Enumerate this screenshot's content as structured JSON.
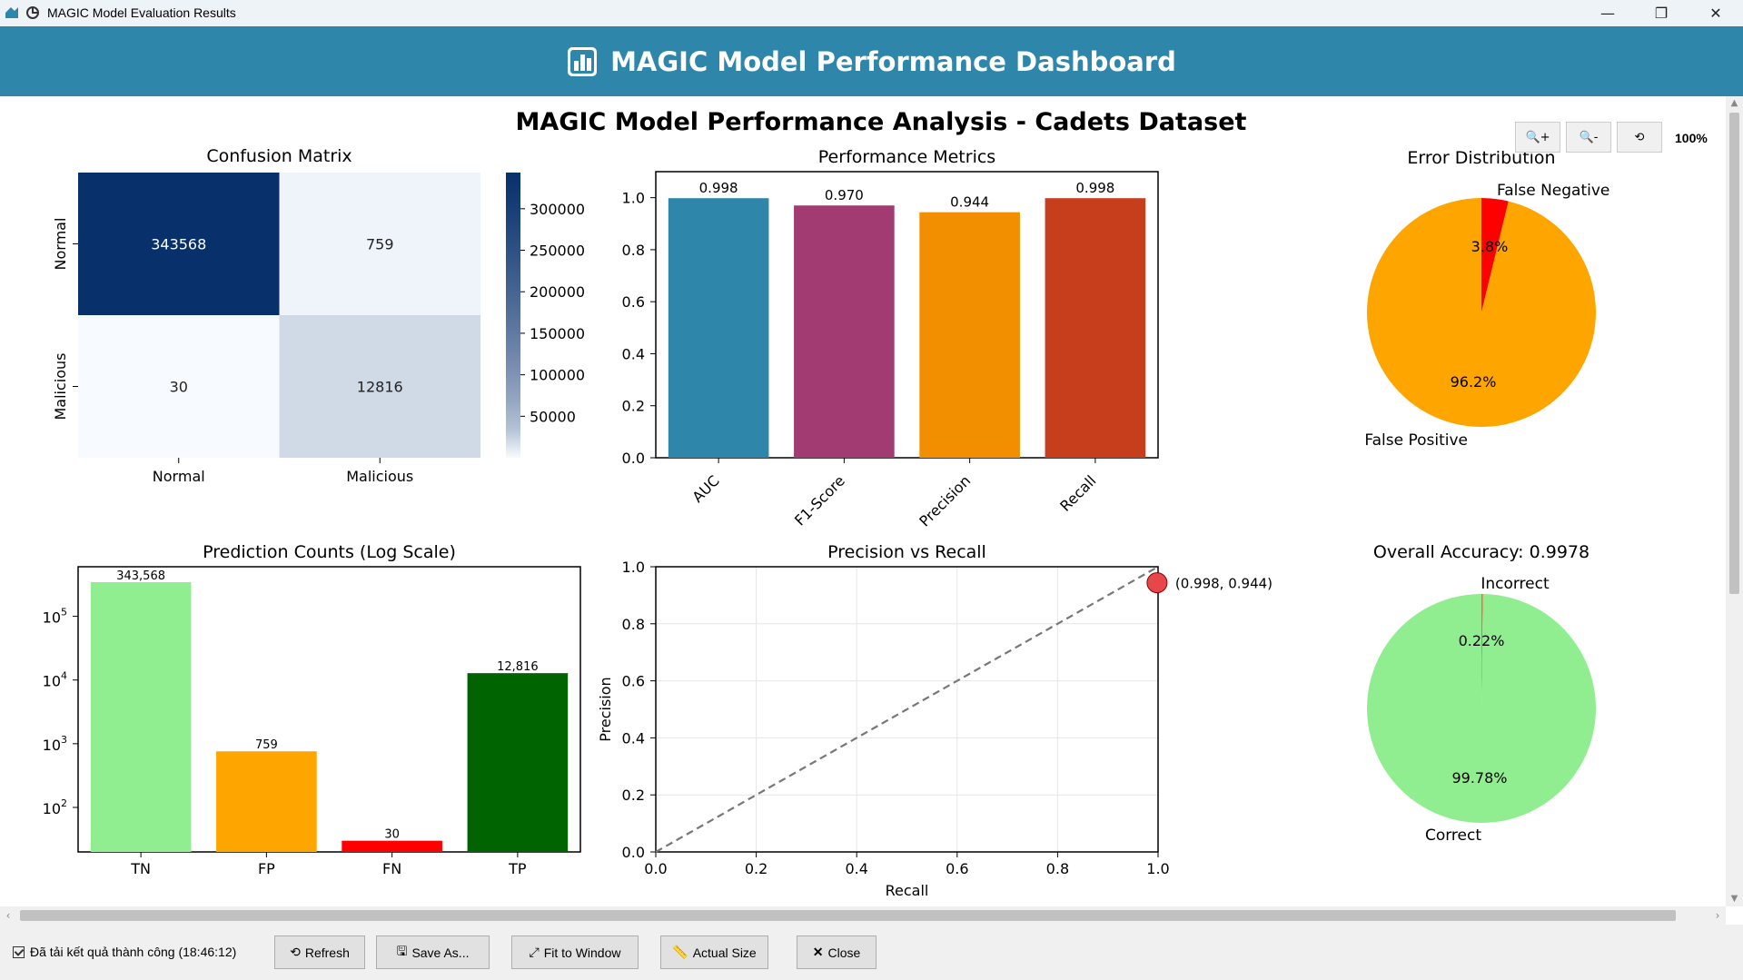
{
  "window": {
    "title": "MAGIC Model Evaluation Results",
    "minimize": "—",
    "maximize": "❐",
    "close": "✕"
  },
  "header": {
    "title": "MAGIC Model Performance Dashboard"
  },
  "figure": {
    "suptitle": "MAGIC Model Performance Analysis - Cadets Dataset"
  },
  "zoom": {
    "level": "100%",
    "zoom_in": "🔍+",
    "zoom_out": "🔍-",
    "reset": "⟲"
  },
  "status": {
    "text": "Đã tải kết quả thành công (18:46:12)"
  },
  "buttons": {
    "refresh": "Refresh",
    "save": "Save As...",
    "fit": "Fit to Window",
    "actual": "Actual Size",
    "close": "Close"
  },
  "chart_data": [
    {
      "type": "heatmap",
      "title": "Confusion Matrix",
      "row_labels": [
        "Normal",
        "Malicious"
      ],
      "col_labels": [
        "Normal",
        "Malicious"
      ],
      "values": [
        [
          343568,
          759
        ],
        [
          30,
          12816
        ]
      ],
      "value_labels": [
        [
          "343568",
          "759"
        ],
        [
          "30",
          "12816"
        ]
      ],
      "colorbar_ticks": [
        "300000",
        "250000",
        "200000",
        "150000",
        "100000",
        "50000"
      ],
      "colorbar_values": [
        300000,
        250000,
        200000,
        150000,
        100000,
        50000
      ],
      "colormap": "Blues"
    },
    {
      "type": "bar",
      "title": "Performance Metrics",
      "categories": [
        "AUC",
        "F1-Score",
        "Precision",
        "Recall"
      ],
      "values": [
        0.998,
        0.97,
        0.944,
        0.998
      ],
      "value_labels": [
        "0.998",
        "0.970",
        "0.944",
        "0.998"
      ],
      "colors": [
        "#2e86ab",
        "#a23b72",
        "#f18f01",
        "#c73e1d"
      ],
      "ylim": [
        0,
        1.1
      ],
      "yticks": [
        "0.0",
        "0.2",
        "0.4",
        "0.6",
        "0.8",
        "1.0"
      ]
    },
    {
      "type": "pie",
      "title": "Error Distribution",
      "labels": [
        "False Negative",
        "False Positive"
      ],
      "values": [
        3.8,
        96.2
      ],
      "pct_labels": [
        "3.8%",
        "96.2%"
      ],
      "colors": [
        "#ff0000",
        "#ffa500"
      ]
    },
    {
      "type": "bar",
      "title": "Prediction Counts (Log Scale)",
      "categories": [
        "TN",
        "FP",
        "FN",
        "TP"
      ],
      "values": [
        343568,
        759,
        30,
        12816
      ],
      "value_labels": [
        "343,568",
        "759",
        "30",
        "12,816"
      ],
      "colors": [
        "#90ee90",
        "#ffa500",
        "#ff0000",
        "#006400"
      ],
      "yscale": "log",
      "yticks": [
        {
          "base": "10",
          "exp": "2",
          "v": 100
        },
        {
          "base": "10",
          "exp": "3",
          "v": 1000
        },
        {
          "base": "10",
          "exp": "4",
          "v": 10000
        },
        {
          "base": "10",
          "exp": "5",
          "v": 100000
        }
      ]
    },
    {
      "type": "scatter",
      "title": "Precision vs Recall",
      "xlabel": "Recall",
      "ylabel": "Precision",
      "xlim": [
        0,
        1
      ],
      "ylim": [
        0,
        1
      ],
      "xticks": [
        "0.0",
        "0.2",
        "0.4",
        "0.6",
        "0.8",
        "1.0"
      ],
      "yticks": [
        "0.0",
        "0.2",
        "0.4",
        "0.6",
        "0.8",
        "1.0"
      ],
      "points": [
        {
          "x": 0.998,
          "y": 0.944,
          "label": "(0.998, 0.944)"
        }
      ],
      "reference_line": "y = x",
      "grid": true
    },
    {
      "type": "pie",
      "title": "Overall Accuracy: 0.9978",
      "labels": [
        "Incorrect",
        "Correct"
      ],
      "values": [
        0.22,
        99.78
      ],
      "pct_labels": [
        "0.22%",
        "99.78%"
      ],
      "colors": [
        "#ff6347",
        "#90ee90"
      ]
    }
  ]
}
